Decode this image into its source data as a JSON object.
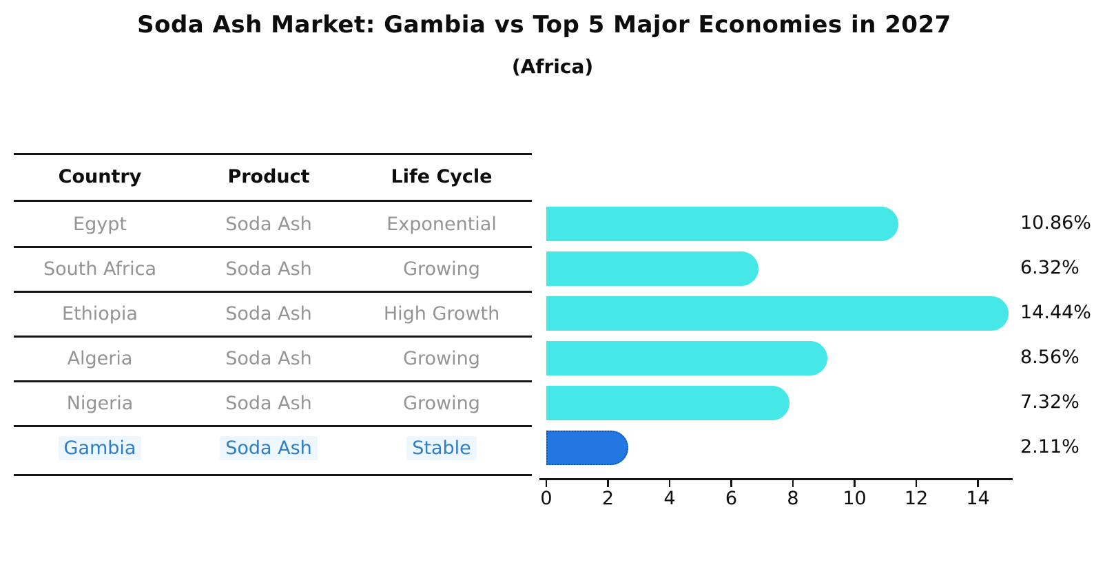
{
  "title": "Soda Ash Market: Gambia vs Top 5 Major Economies in 2027",
  "subtitle": "(Africa)",
  "table": {
    "columns": [
      "Country",
      "Product",
      "Life Cycle"
    ],
    "rows": [
      {
        "country": "Egypt",
        "product": "Soda Ash",
        "life_cycle": "Exponential",
        "highlight": false
      },
      {
        "country": "South Africa",
        "product": "Soda Ash",
        "life_cycle": "Growing",
        "highlight": false
      },
      {
        "country": "Ethiopia",
        "product": "Soda Ash",
        "life_cycle": "High Growth",
        "highlight": false
      },
      {
        "country": "Algeria",
        "product": "Soda Ash",
        "life_cycle": "Growing",
        "highlight": false
      },
      {
        "country": "Nigeria",
        "product": "Soda Ash",
        "life_cycle": "Growing",
        "highlight": false
      },
      {
        "country": "Gambia",
        "product": "Soda Ash",
        "life_cycle": "Stable",
        "highlight": true
      }
    ]
  },
  "chart_data": {
    "type": "bar",
    "orientation": "horizontal",
    "title": "Soda Ash Market: Gambia vs Top 5 Major Economies in 2027",
    "subtitle": "(Africa)",
    "categories": [
      "Egypt",
      "South Africa",
      "Ethiopia",
      "Algeria",
      "Nigeria",
      "Gambia"
    ],
    "values": [
      10.86,
      6.32,
      14.44,
      8.56,
      7.32,
      2.11
    ],
    "value_labels": [
      "10.86%",
      "6.32%",
      "14.44%",
      "8.56%",
      "7.32%",
      "2.11%"
    ],
    "highlight_index": 5,
    "x_ticks": [
      0,
      2,
      4,
      6,
      8,
      10,
      12,
      14
    ],
    "xlim": [
      0,
      15.1
    ],
    "grid": false,
    "legend": "none"
  },
  "colors": {
    "bar_default": "#45e8e6",
    "bar_highlight": "#2278e0",
    "bar_highlight_border": "#0c52be",
    "row_text": "#949494",
    "highlight_text": "#2d7dc8",
    "axis_text": "#0d0d0d",
    "line": "#141414"
  }
}
